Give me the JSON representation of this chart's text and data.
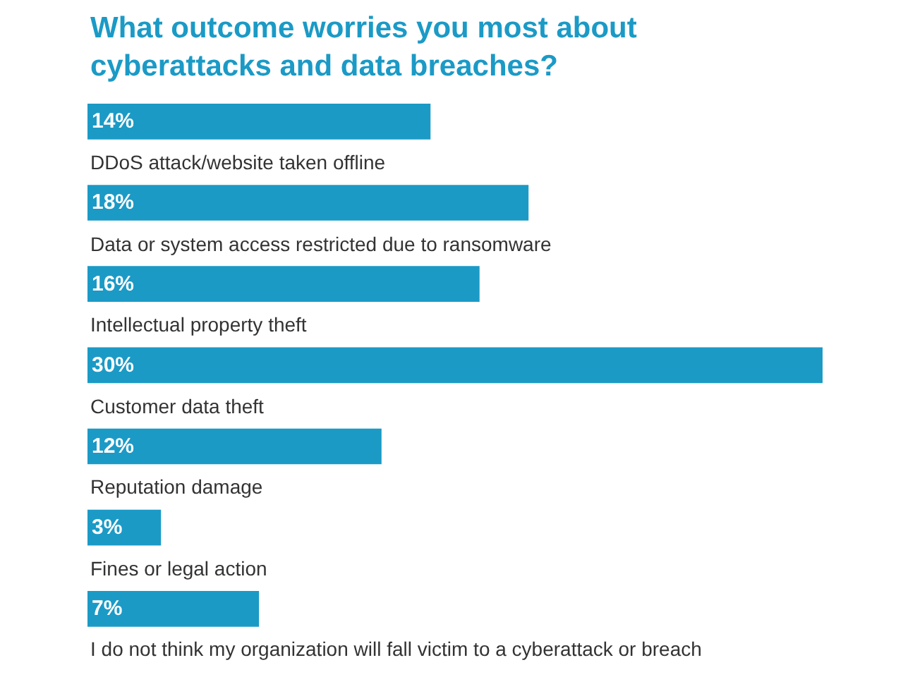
{
  "chart_data": {
    "type": "bar",
    "orientation": "horizontal",
    "title": "What outcome worries you most about\ncyberattacks and data breaches?",
    "categories": [
      "DDoS attack/website taken offline",
      "Data or system access restricted due to ransomware",
      "Intellectual property theft",
      "Customer data theft",
      "Reputation damage",
      "Fines or legal action",
      "I do not think my organization will fall victim to a cyberattack or breach"
    ],
    "values": [
      14,
      18,
      16,
      30,
      12,
      3,
      7
    ],
    "value_labels": [
      "14%",
      "18%",
      "16%",
      "30%",
      "12%",
      "3%",
      "7%"
    ],
    "color": "#1b9ac6"
  }
}
